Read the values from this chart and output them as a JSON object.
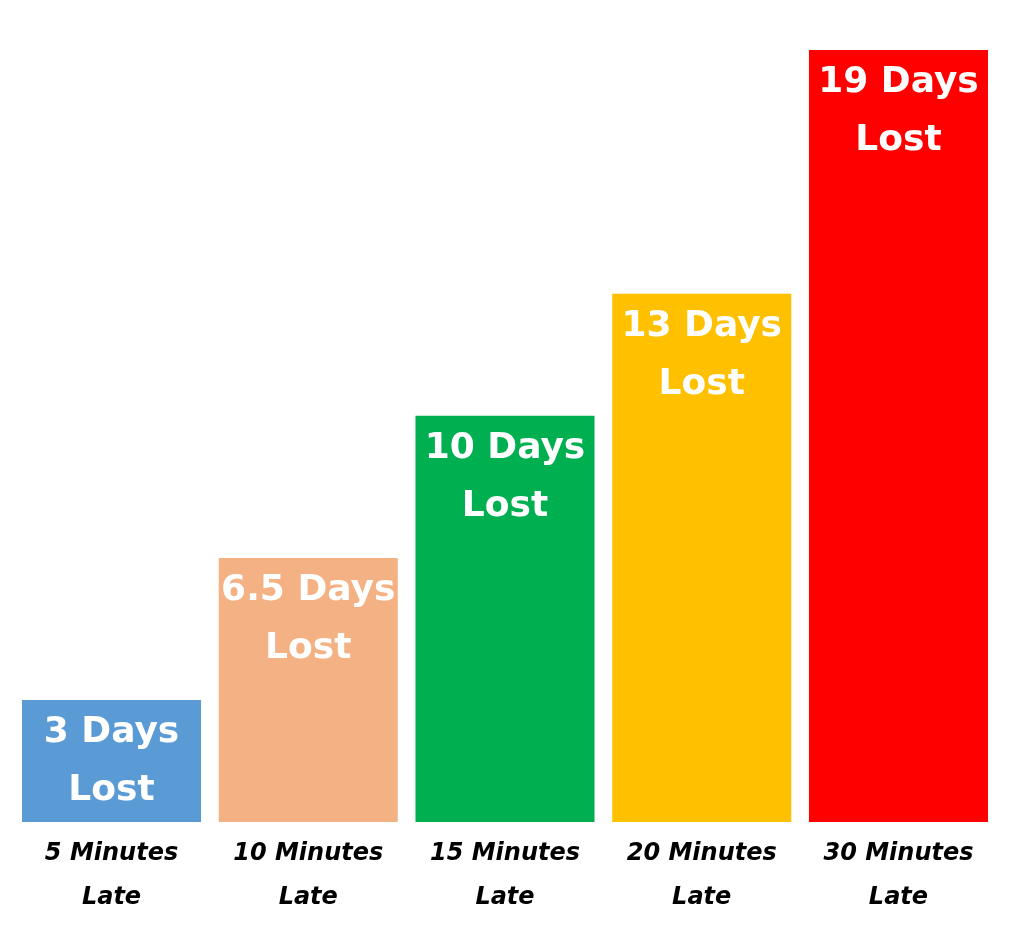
{
  "chart_data": {
    "type": "bar",
    "categories": [
      "5 Minutes Late",
      "10 Minutes Late",
      "15 Minutes Late",
      "20 Minutes Late",
      "30 Minutes Late"
    ],
    "values": [
      3,
      6.5,
      10,
      13,
      19
    ],
    "colors": [
      "#5b9bd5",
      "#f4b183",
      "#00b050",
      "#ffc000",
      "#ff0000"
    ],
    "value_labels": [
      "3 Days Lost",
      "6.5 Days Lost",
      "10 Days Lost",
      "13 Days Lost",
      "19 Days Lost"
    ],
    "grid": false,
    "legend": false
  }
}
